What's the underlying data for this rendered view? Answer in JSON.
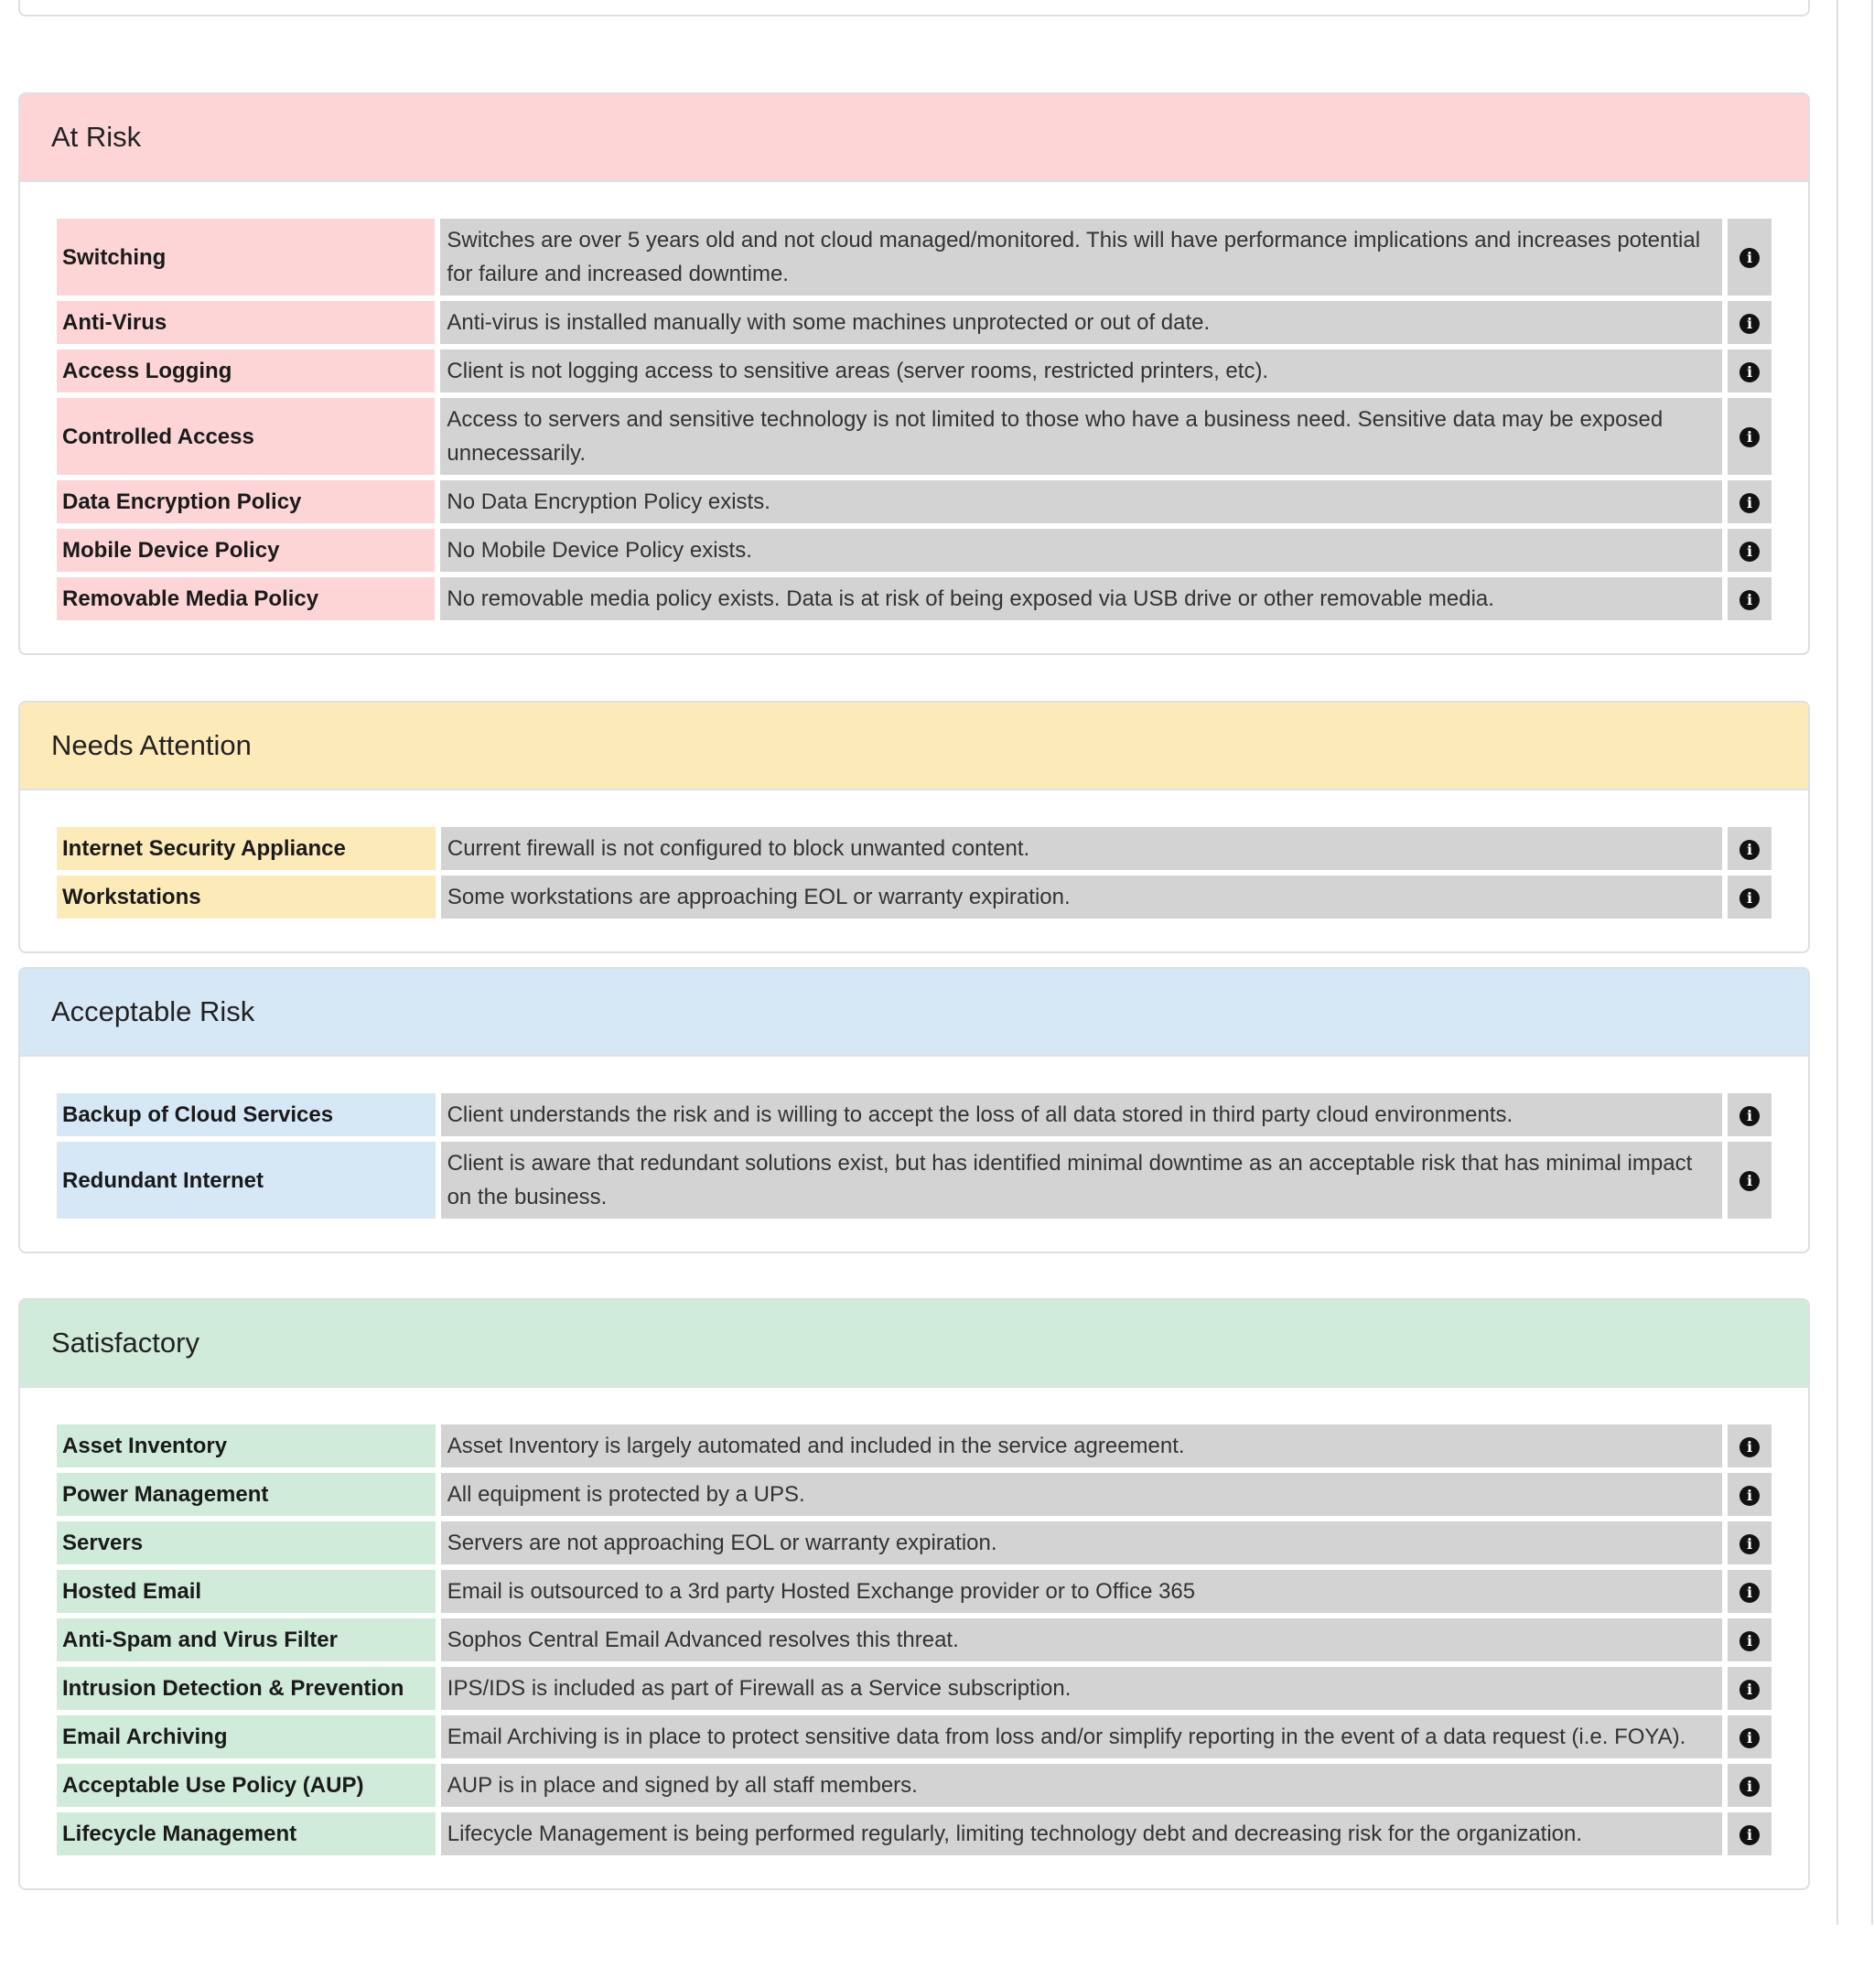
{
  "colors": {
    "at_risk": "#fdd5d6",
    "needs_attention": "#fdeab9",
    "acceptable_risk": "#d6e7f6",
    "satisfactory": "#d0ebd9",
    "description_bg": "#d3d3d3"
  },
  "sections": [
    {
      "title": "At Risk",
      "key": "at_risk",
      "items": [
        {
          "label": "Switching",
          "description": "Switches are over 5 years old and not cloud managed/monitored. This will have performance implications and increases potential for failure and increased downtime."
        },
        {
          "label": "Anti-Virus",
          "description": "Anti-virus is installed manually with some machines unprotected or out of date."
        },
        {
          "label": "Access Logging",
          "description": "Client is not logging access to sensitive areas (server rooms, restricted printers, etc)."
        },
        {
          "label": "Controlled Access",
          "description": "Access to servers and sensitive technology is not limited to those who have a business need. Sensitive data may be exposed unnecessarily."
        },
        {
          "label": "Data Encryption Policy",
          "description": "No Data Encryption Policy exists."
        },
        {
          "label": "Mobile Device Policy",
          "description": "No Mobile Device Policy exists."
        },
        {
          "label": "Removable Media Policy",
          "description": "No removable media policy exists. Data is at risk of being exposed via USB drive or other removable media."
        }
      ]
    },
    {
      "title": "Needs Attention",
      "key": "needs_attention",
      "items": [
        {
          "label": "Internet Security Appliance",
          "description": "Current firewall is not configured to block unwanted content."
        },
        {
          "label": "Workstations",
          "description": "Some workstations are approaching EOL or warranty expiration."
        }
      ]
    },
    {
      "title": "Acceptable Risk",
      "key": "acceptable_risk",
      "items": [
        {
          "label": "Backup of Cloud Services",
          "description": "Client understands the risk and is willing to accept the loss of all data stored in third party cloud environments."
        },
        {
          "label": "Redundant Internet",
          "description": "Client is aware that redundant solutions exist, but has identified minimal downtime as an acceptable risk that has minimal impact on the business."
        }
      ]
    },
    {
      "title": "Satisfactory",
      "key": "satisfactory",
      "items": [
        {
          "label": "Asset Inventory",
          "description": "Asset Inventory is largely automated and included in the service agreement."
        },
        {
          "label": "Power Management",
          "description": "All equipment is protected by a UPS."
        },
        {
          "label": "Servers",
          "description": "Servers are not approaching EOL or warranty expiration."
        },
        {
          "label": "Hosted Email",
          "description": "Email is outsourced to a 3rd party Hosted Exchange provider or to Office 365"
        },
        {
          "label": "Anti-Spam and Virus Filter",
          "description": "Sophos Central Email Advanced resolves this threat."
        },
        {
          "label": "Intrusion Detection & Prevention",
          "description": "IPS/IDS is included as part of Firewall as a Service subscription."
        },
        {
          "label": "Email Archiving",
          "description": "Email Archiving is in place to protect sensitive data from loss and/or simplify reporting in the event of a data request (i.e. FOYA)."
        },
        {
          "label": "Acceptable Use Policy (AUP)",
          "description": "AUP is in place and signed by all staff members."
        },
        {
          "label": "Lifecycle Management",
          "description": "Lifecycle Management is being performed regularly, limiting technology debt and decreasing risk for the organization."
        }
      ]
    }
  ],
  "info_icon": "info-circle-icon"
}
